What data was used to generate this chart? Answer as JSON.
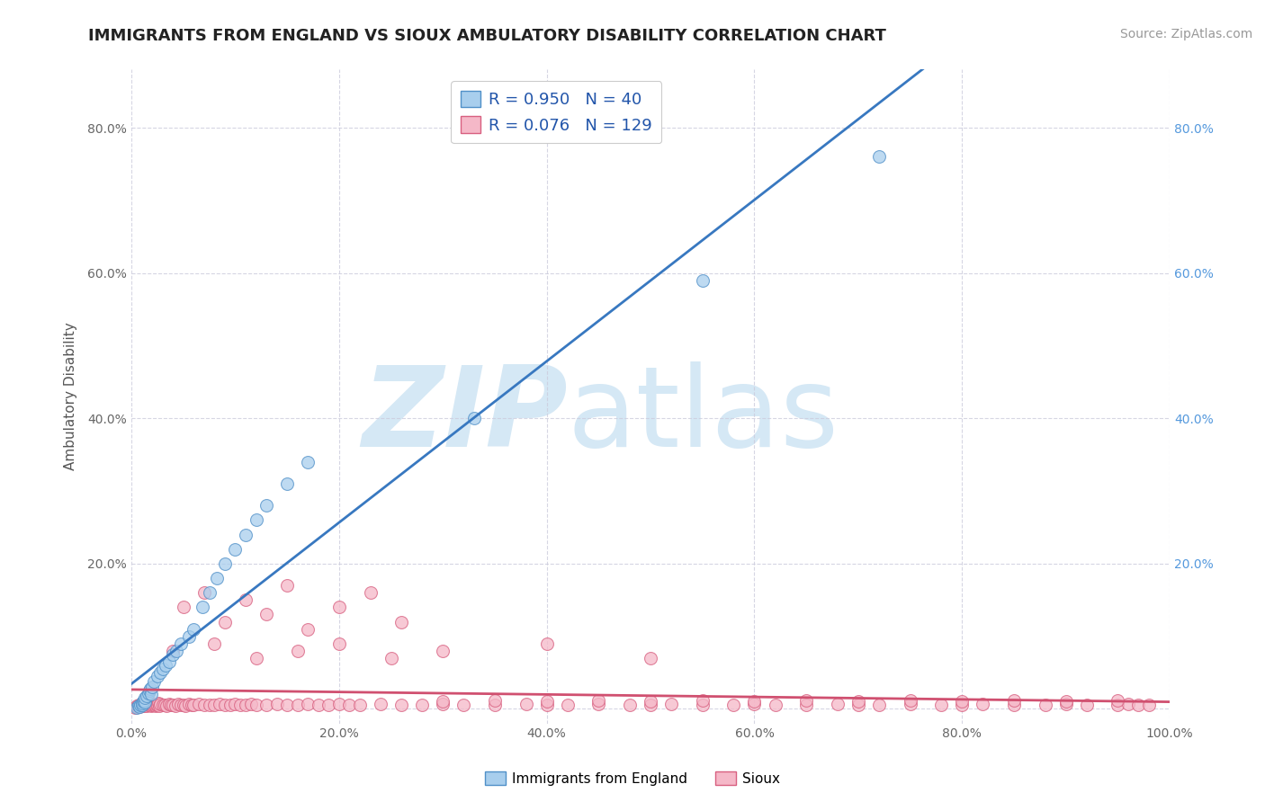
{
  "title": "IMMIGRANTS FROM ENGLAND VS SIOUX AMBULATORY DISABILITY CORRELATION CHART",
  "source": "Source: ZipAtlas.com",
  "ylabel": "Ambulatory Disability",
  "legend_label_1": "Immigrants from England",
  "legend_label_2": "Sioux",
  "legend_r1": "R = 0.950",
  "legend_n1": "N = 40",
  "legend_r2": "R = 0.076",
  "legend_n2": "N = 129",
  "color_blue_fill": "#A8CEED",
  "color_blue_edge": "#5090C8",
  "color_pink_fill": "#F5B8C8",
  "color_pink_edge": "#D86080",
  "color_blue_line": "#3878C0",
  "color_pink_line": "#D05070",
  "color_legend_r": "#2255AA",
  "xlim": [
    0.0,
    1.0
  ],
  "ylim": [
    -0.02,
    0.88
  ],
  "xticks": [
    0.0,
    0.2,
    0.4,
    0.6,
    0.8,
    1.0
  ],
  "yticks": [
    0.0,
    0.2,
    0.4,
    0.6,
    0.8
  ],
  "xtick_labels": [
    "0.0%",
    "20.0%",
    "40.0%",
    "60.0%",
    "80.0%",
    "100.0%"
  ],
  "ytick_labels_left": [
    "",
    "20.0%",
    "40.0%",
    "60.0%",
    "80.0%"
  ],
  "ytick_labels_right": [
    "",
    "20.0%",
    "40.0%",
    "60.0%",
    "80.0%"
  ],
  "blue_x": [
    0.005,
    0.007,
    0.008,
    0.009,
    0.01,
    0.01,
    0.011,
    0.012,
    0.013,
    0.013,
    0.015,
    0.016,
    0.017,
    0.018,
    0.019,
    0.02,
    0.022,
    0.025,
    0.028,
    0.03,
    0.033,
    0.036,
    0.04,
    0.043,
    0.048,
    0.055,
    0.06,
    0.068,
    0.075,
    0.082,
    0.09,
    0.1,
    0.11,
    0.12,
    0.13,
    0.15,
    0.17,
    0.33,
    0.55,
    0.72
  ],
  "blue_y": [
    0.002,
    0.004,
    0.003,
    0.005,
    0.006,
    0.008,
    0.01,
    0.012,
    0.009,
    0.015,
    0.018,
    0.022,
    0.025,
    0.028,
    0.02,
    0.03,
    0.038,
    0.045,
    0.05,
    0.055,
    0.06,
    0.065,
    0.075,
    0.08,
    0.09,
    0.1,
    0.11,
    0.14,
    0.16,
    0.18,
    0.2,
    0.22,
    0.24,
    0.26,
    0.28,
    0.31,
    0.34,
    0.4,
    0.59,
    0.76
  ],
  "pink_x": [
    0.003,
    0.005,
    0.006,
    0.007,
    0.008,
    0.009,
    0.01,
    0.01,
    0.011,
    0.012,
    0.013,
    0.014,
    0.015,
    0.015,
    0.016,
    0.017,
    0.018,
    0.019,
    0.02,
    0.021,
    0.022,
    0.023,
    0.024,
    0.025,
    0.026,
    0.027,
    0.028,
    0.03,
    0.032,
    0.034,
    0.036,
    0.038,
    0.04,
    0.042,
    0.045,
    0.048,
    0.05,
    0.052,
    0.055,
    0.058,
    0.06,
    0.065,
    0.07,
    0.075,
    0.08,
    0.085,
    0.09,
    0.095,
    0.1,
    0.105,
    0.11,
    0.115,
    0.12,
    0.13,
    0.14,
    0.15,
    0.16,
    0.17,
    0.18,
    0.19,
    0.2,
    0.21,
    0.22,
    0.24,
    0.26,
    0.28,
    0.3,
    0.32,
    0.35,
    0.38,
    0.4,
    0.42,
    0.45,
    0.48,
    0.5,
    0.52,
    0.55,
    0.58,
    0.6,
    0.62,
    0.65,
    0.68,
    0.7,
    0.72,
    0.75,
    0.78,
    0.8,
    0.82,
    0.85,
    0.88,
    0.9,
    0.92,
    0.95,
    0.96,
    0.97,
    0.98,
    0.05,
    0.07,
    0.09,
    0.11,
    0.13,
    0.15,
    0.17,
    0.2,
    0.23,
    0.26,
    0.3,
    0.35,
    0.4,
    0.45,
    0.5,
    0.55,
    0.6,
    0.65,
    0.7,
    0.75,
    0.8,
    0.85,
    0.9,
    0.95,
    0.04,
    0.08,
    0.12,
    0.16,
    0.2,
    0.25,
    0.3,
    0.4,
    0.5
  ],
  "pink_y": [
    0.002,
    0.004,
    0.003,
    0.005,
    0.003,
    0.006,
    0.004,
    0.007,
    0.005,
    0.004,
    0.006,
    0.005,
    0.007,
    0.004,
    0.006,
    0.005,
    0.007,
    0.004,
    0.006,
    0.005,
    0.007,
    0.004,
    0.006,
    0.005,
    0.008,
    0.004,
    0.007,
    0.005,
    0.006,
    0.004,
    0.007,
    0.005,
    0.006,
    0.004,
    0.007,
    0.005,
    0.006,
    0.004,
    0.007,
    0.005,
    0.006,
    0.007,
    0.005,
    0.006,
    0.005,
    0.007,
    0.006,
    0.005,
    0.007,
    0.006,
    0.005,
    0.007,
    0.006,
    0.005,
    0.007,
    0.006,
    0.005,
    0.007,
    0.006,
    0.005,
    0.007,
    0.006,
    0.005,
    0.007,
    0.006,
    0.005,
    0.007,
    0.006,
    0.005,
    0.007,
    0.006,
    0.005,
    0.007,
    0.006,
    0.005,
    0.007,
    0.006,
    0.005,
    0.007,
    0.006,
    0.005,
    0.007,
    0.006,
    0.005,
    0.007,
    0.006,
    0.005,
    0.007,
    0.006,
    0.005,
    0.007,
    0.006,
    0.005,
    0.007,
    0.006,
    0.005,
    0.14,
    0.16,
    0.12,
    0.15,
    0.13,
    0.17,
    0.11,
    0.14,
    0.16,
    0.12,
    0.01,
    0.012,
    0.01,
    0.012,
    0.01,
    0.012,
    0.01,
    0.012,
    0.01,
    0.012,
    0.01,
    0.012,
    0.01,
    0.012,
    0.08,
    0.09,
    0.07,
    0.08,
    0.09,
    0.07,
    0.08,
    0.09,
    0.07
  ],
  "watermark_zip": "ZIP",
  "watermark_atlas": "atlas",
  "watermark_color": "#D5E8F5",
  "background_color": "#FFFFFF",
  "grid_color": "#CCCCDD",
  "title_fontsize": 13,
  "axis_label_fontsize": 11,
  "tick_fontsize": 10,
  "source_fontsize": 10,
  "right_tick_color": "#5599DD"
}
